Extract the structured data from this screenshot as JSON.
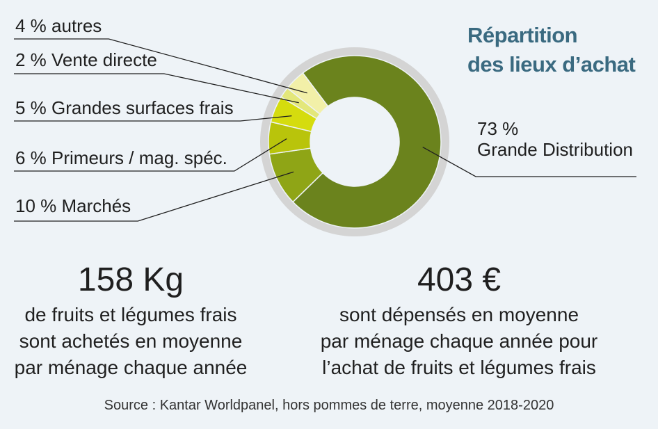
{
  "title_lines": [
    "Répartition",
    "des lieux d’achat"
  ],
  "chart_data": {
    "type": "donut",
    "title": "Répartition des lieux d’achat",
    "unit": "%",
    "series": [
      {
        "label": "73 % Grande Distribution",
        "label_lines": [
          "73 %",
          "Grande Distribution"
        ],
        "value": 73,
        "color": "#6b831d"
      },
      {
        "label": "10 % Marchés",
        "value": 10,
        "color": "#8fa516"
      },
      {
        "label": "6 % Primeurs / mag. spéc.",
        "value": 6,
        "color": "#b9c40b"
      },
      {
        "label": "5 % Grandes surfaces frais",
        "value": 5,
        "color": "#d5dc0e"
      },
      {
        "label": "2 % Vente directe",
        "value": 2,
        "color": "#e3e77a"
      },
      {
        "label": "4 % autres",
        "value": 4,
        "color": "#f2f0a8"
      }
    ]
  },
  "stats": {
    "left": {
      "value": "158 Kg",
      "lines": [
        "de fruits et légumes frais",
        "sont achetés en moyenne",
        "par ménage chaque année"
      ]
    },
    "right": {
      "value": "403 €",
      "lines": [
        "sont dépensés en moyenne",
        "par ménage chaque année pour",
        "l’achat de fruits et légumes frais"
      ]
    }
  },
  "source": "Source : Kantar Worldpanel, hors pommes de terre, moyenne 2018-2020"
}
